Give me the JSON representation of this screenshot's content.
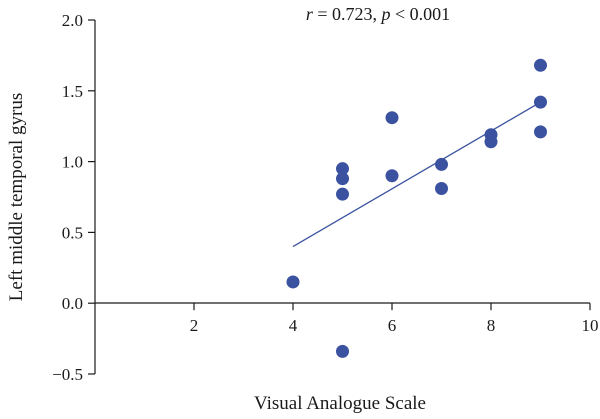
{
  "chart_data": {
    "type": "scatter",
    "annotation": {
      "r_symbol": "r",
      "r_text": " = 0.723, ",
      "p_symbol": "p",
      "p_text": " < 0.001"
    },
    "xlabel": "Visual Analogue Scale",
    "ylabel": "Left middle temporal gyrus",
    "xlim": [
      0,
      10
    ],
    "ylim": [
      -0.5,
      2.0
    ],
    "xticks": [
      2,
      4,
      6,
      8,
      10
    ],
    "xtick_labels": [
      "2",
      "4",
      "6",
      "8",
      "10"
    ],
    "yticks": [
      2.0,
      1.5,
      1.0,
      0.5,
      0.0,
      -0.5
    ],
    "ytick_labels": [
      "2.0",
      "1.5",
      "1.0",
      "0.5",
      "0.0",
      "−0.5"
    ],
    "grid": false,
    "points": [
      {
        "x": 4,
        "y": 0.15
      },
      {
        "x": 5,
        "y": 0.95
      },
      {
        "x": 5,
        "y": 0.88
      },
      {
        "x": 5,
        "y": 0.77
      },
      {
        "x": 5,
        "y": -0.34
      },
      {
        "x": 6,
        "y": 1.31
      },
      {
        "x": 6,
        "y": 0.9
      },
      {
        "x": 7,
        "y": 0.98
      },
      {
        "x": 7,
        "y": 0.81
      },
      {
        "x": 8,
        "y": 1.19
      },
      {
        "x": 8,
        "y": 1.14
      },
      {
        "x": 9,
        "y": 1.68
      },
      {
        "x": 9,
        "y": 1.42
      },
      {
        "x": 9,
        "y": 1.21
      }
    ],
    "fit_line": {
      "x": [
        4,
        9
      ],
      "y": [
        0.4,
        1.42
      ]
    },
    "colors": {
      "points": "#3a52a0",
      "line": "#3a52a0",
      "axis": "#1a1a1a"
    }
  }
}
